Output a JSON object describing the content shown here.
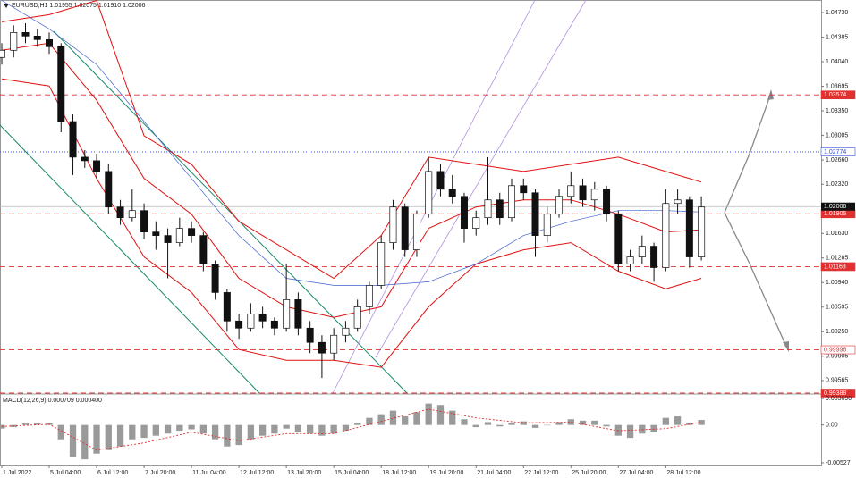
{
  "chart_data": [
    {
      "type": "candlestick",
      "title": "EURUSD,H1  1.01955 1.02075 1.01910 1.02006",
      "open": [
        1.041,
        1.042,
        1.0445,
        1.044,
        1.0435,
        1.0425,
        1.032,
        1.027,
        1.0265,
        1.025,
        1.02,
        1.0185,
        1.0195,
        1.0165,
        1.016,
        1.015,
        1.017,
        1.016,
        1.012,
        1.008,
        1.004,
        1.003,
        1.005,
        1.004,
        1.003,
        1.007,
        1.003,
        1.001,
        0.9995,
        1.002,
        1.003,
        1.006,
        1.009,
        1.015,
        1.02,
        1.014,
        1.019,
        1.025,
        1.0225,
        1.0215,
        1.017,
        1.0185,
        1.021,
        1.0185,
        1.023,
        1.022,
        1.016,
        1.019,
        1.0215,
        1.023,
        1.021,
        1.0225,
        1.019,
        1.012,
        1.013,
        1.0145,
        1.0115,
        1.0205,
        1.021,
        1.013
      ],
      "high": [
        1.043,
        1.0455,
        1.0458,
        1.045,
        1.0445,
        1.043,
        1.033,
        1.028,
        1.0275,
        1.026,
        1.021,
        1.0225,
        1.0205,
        1.018,
        1.017,
        1.0185,
        1.018,
        1.0165,
        1.0125,
        1.0085,
        1.005,
        1.0065,
        1.006,
        1.0045,
        1.012,
        1.008,
        1.004,
        1.002,
        1.003,
        1.004,
        1.007,
        1.0095,
        1.016,
        1.021,
        1.0205,
        1.0195,
        1.027,
        1.026,
        1.0245,
        1.022,
        1.0195,
        1.027,
        1.022,
        1.024,
        1.024,
        1.0225,
        1.02,
        1.0225,
        1.025,
        1.024,
        1.0235,
        1.023,
        1.0195,
        1.014,
        1.016,
        1.015,
        1.0225,
        1.0225,
        1.0215,
        1.0215
      ],
      "low": [
        1.04,
        1.041,
        1.043,
        1.0425,
        1.0415,
        1.0305,
        1.0245,
        1.0255,
        1.024,
        1.019,
        1.0175,
        1.018,
        1.0155,
        1.014,
        1.01,
        1.0145,
        1.015,
        1.011,
        1.007,
        1.0025,
        1.0015,
        1.0025,
        1.003,
        1.002,
        1.0025,
        1.002,
        0.9995,
        0.996,
        0.9985,
        1.001,
        1.0025,
        1.005,
        1.0085,
        1.014,
        1.013,
        1.013,
        1.0185,
        1.0215,
        1.0205,
        1.015,
        1.016,
        1.0175,
        1.0175,
        1.018,
        1.021,
        1.013,
        1.015,
        1.0185,
        1.0205,
        1.02,
        1.0195,
        1.018,
        1.011,
        1.011,
        1.012,
        1.0095,
        1.011,
        1.019,
        1.0115,
        1.0125
      ],
      "close": [
        1.042,
        1.0445,
        1.044,
        1.0435,
        1.0425,
        1.032,
        1.027,
        1.0265,
        1.025,
        1.02,
        1.0185,
        1.0195,
        1.0165,
        1.016,
        1.015,
        1.017,
        1.016,
        1.012,
        1.008,
        1.004,
        1.003,
        1.005,
        1.004,
        1.003,
        1.007,
        1.003,
        1.001,
        0.9995,
        1.002,
        1.003,
        1.006,
        1.009,
        1.015,
        1.02,
        1.014,
        1.019,
        1.025,
        1.0225,
        1.0215,
        1.017,
        1.0185,
        1.021,
        1.0185,
        1.023,
        1.022,
        1.016,
        1.019,
        1.0215,
        1.023,
        1.021,
        1.0225,
        1.019,
        1.012,
        1.013,
        1.0145,
        1.0115,
        1.0205,
        1.021,
        1.013,
        1.02
      ],
      "band_x": [
        0,
        4,
        8,
        12,
        16,
        20,
        24,
        28,
        32,
        36,
        40,
        44,
        48,
        52,
        56,
        59
      ],
      "series": [
        {
          "color": "#e01010",
          "values": [
            1.046,
            1.047,
            1.049,
            1.03,
            1.026,
            1.018,
            1.014,
            1.01,
            1.016,
            1.027,
            1.026,
            1.025,
            1.026,
            1.027,
            1.025,
            1.0235
          ]
        },
        {
          "color": "#e01010",
          "values": [
            1.042,
            1.043,
            1.035,
            1.024,
            1.019,
            1.01,
            1.006,
            1.0045,
            1.006,
            1.017,
            1.02,
            1.021,
            1.021,
            1.019,
            1.0165,
            1.0168
          ]
        },
        {
          "color": "#e01010",
          "values": [
            1.038,
            1.037,
            1.024,
            1.013,
            1.008,
            1.0,
            0.9985,
            0.9985,
            0.9975,
            1.006,
            1.012,
            1.014,
            1.015,
            1.011,
            1.0085,
            1.01
          ]
        },
        {
          "color": "#4060d0",
          "values": [
            1.049,
            1.045,
            1.04,
            1.032,
            1.024,
            1.016,
            1.01,
            1.009,
            1.009,
            1.0095,
            1.012,
            1.016,
            1.018,
            1.0195,
            1.0195,
            1.0193
          ]
        }
      ],
      "levels": [
        {
          "value": 1.03574,
          "color": "#e03030",
          "style": "dashed",
          "label_fill": true
        },
        {
          "value": 1.02774,
          "color": "#3050e0",
          "style": "dotted",
          "label_fill": false
        },
        {
          "value": 1.01905,
          "color": "#e03030",
          "style": "dashed",
          "label_fill": true
        },
        {
          "value": 1.01163,
          "color": "#e03030",
          "style": "dashed",
          "label_fill": true
        },
        {
          "value": 0.99996,
          "color": "#e03030",
          "style": "dashed",
          "label_fill": false
        },
        {
          "value": 0.99388,
          "color": "#e03030",
          "style": "dashed",
          "label_fill": true
        }
      ],
      "current": 1.02006,
      "xlim": [
        -0.15,
        69.1
      ],
      "ylim": [
        0.99388,
        1.04906
      ],
      "yticks": [
        {
          "value": 1.0473,
          "label": "1.04730"
        },
        {
          "value": 1.04385,
          "label": "1.04385"
        },
        {
          "value": 1.0404,
          "label": "1.04040"
        },
        {
          "value": 1.03695,
          "label": "1.03695"
        },
        {
          "value": 1.0335,
          "label": "1.03350"
        },
        {
          "value": 1.03005,
          "label": "1.03005"
        },
        {
          "value": 1.0266,
          "label": "1.02660"
        },
        {
          "value": 1.0232,
          "label": "1.02320"
        },
        {
          "value": 1.0163,
          "label": "1.01630"
        },
        {
          "value": 1.01285,
          "label": "1.01285"
        },
        {
          "value": 1.0094,
          "label": "1.00940"
        },
        {
          "value": 1.00595,
          "label": "1.00595"
        },
        {
          "value": 1.0025,
          "label": "1.00250"
        },
        {
          "value": 0.99905,
          "label": "0.99905"
        },
        {
          "value": 0.99565,
          "label": "0.99565"
        }
      ],
      "xticks": [
        {
          "value": 0,
          "label": "1 Jul 2022"
        },
        {
          "value": 4,
          "label": "5 Jul 04:00"
        },
        {
          "value": 8,
          "label": "6 Jul 12:00"
        },
        {
          "value": 12,
          "label": "7 Jul 20:00"
        },
        {
          "value": 16,
          "label": "11 Jul 04:00"
        },
        {
          "value": 20,
          "label": "12 Jul 12:00"
        },
        {
          "value": 24,
          "label": "13 Jul 20:00"
        },
        {
          "value": 28,
          "label": "15 Jul 04:00"
        },
        {
          "value": 32,
          "label": "18 Jul 12:00"
        },
        {
          "value": 36,
          "label": "19 Jul 20:00"
        },
        {
          "value": 40,
          "label": "21 Jul 04:00"
        },
        {
          "value": 44,
          "label": "22 Jul 12:00"
        },
        {
          "value": 48,
          "label": "25 Jul 20:00"
        },
        {
          "value": 52,
          "label": "27 Jul 04:00"
        },
        {
          "value": 56,
          "label": "28 Jul 12:00"
        }
      ]
    },
    {
      "type": "bar",
      "title": "MACD(12,26,9) 0.000709 0.000400",
      "values": [
        -0.0005,
        -0.0003,
        0.0002,
        0.0003,
        0.0003,
        -0.002,
        -0.0045,
        -0.0048,
        -0.004,
        -0.0035,
        -0.003,
        -0.002,
        -0.0018,
        -0.0015,
        -0.0012,
        -0.0008,
        -0.0006,
        -0.0012,
        -0.002,
        -0.003,
        -0.0028,
        -0.002,
        -0.0015,
        -0.0012,
        -0.0005,
        -0.001,
        -0.0012,
        -0.0015,
        -0.0012,
        -0.0008,
        0.0003,
        0.001,
        0.0015,
        0.002,
        0.0012,
        0.0018,
        0.003,
        0.0028,
        0.002,
        0.0008,
        -0.0003,
        0.0004,
        -0.0002,
        0.0003,
        0.0005,
        -0.0004,
        0.0,
        0.0004,
        0.0008,
        0.0006,
        0.0006,
        -0.0002,
        -0.0015,
        -0.0018,
        -0.0012,
        -0.001,
        0.001,
        0.0012,
        0.0003,
        0.0007
      ],
      "color": "#9a9a9a",
      "signal_x": [
        0,
        4,
        8,
        12,
        16,
        20,
        24,
        28,
        32,
        36,
        40,
        44,
        48,
        52,
        56,
        59
      ],
      "signal": [
        -0.0002,
        0.0001,
        -0.0035,
        -0.0025,
        -0.001,
        -0.0022,
        -0.0012,
        -0.0012,
        0.0005,
        0.0022,
        0.001,
        0.0003,
        0.0004,
        -0.0008,
        -0.0005,
        0.0004
      ],
      "signal_color": "#e03030",
      "ylim": [
        -0.00578,
        0.0042
      ],
      "yticks": [
        {
          "value": 0.00369,
          "label": "0.003690"
        },
        {
          "value": 0,
          "label": "0.00"
        },
        {
          "value": -0.00527,
          "label": "-0.00527"
        }
      ]
    }
  ]
}
